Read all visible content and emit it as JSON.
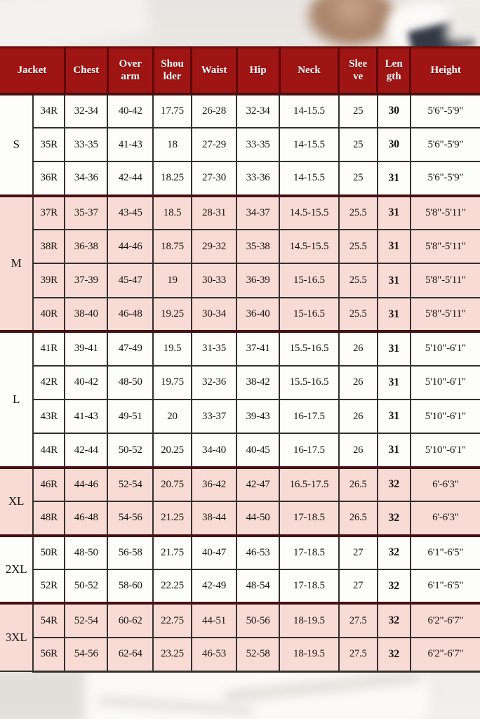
{
  "colors": {
    "header_bg": "#9e1514",
    "header_text": "#ffffff",
    "row_pink": "#f8dbd5",
    "row_white": "#fdfdfc",
    "section_border": "#471011",
    "cell_border": "#353030"
  },
  "chart_data": {
    "type": "table",
    "columns": [
      "Jacket",
      "Chest",
      "Over\narm",
      "Shou\nlder",
      "Waist",
      "Hip",
      "Neck",
      "Slee\nve",
      "Len\ngth",
      "Height"
    ],
    "sections": [
      {
        "size": "S",
        "shade": "white",
        "rows": [
          [
            "34R",
            "32-34",
            "40-42",
            "17.75",
            "26-28",
            "32-34",
            "14-15.5",
            "25",
            "30",
            "5'6\"-5'9\""
          ],
          [
            "35R",
            "33-35",
            "41-43",
            "18",
            "27-29",
            "33-35",
            "14-15.5",
            "25",
            "30",
            "5'6\"-5'9\""
          ],
          [
            "36R",
            "34-36",
            "42-44",
            "18.25",
            "27-30",
            "33-36",
            "14-15.5",
            "25",
            "31",
            "5'6\"-5'9\""
          ]
        ]
      },
      {
        "size": "M",
        "shade": "pink",
        "rows": [
          [
            "37R",
            "35-37",
            "43-45",
            "18.5",
            "28-31",
            "34-37",
            "14.5-15.5",
            "25.5",
            "31",
            "5'8\"-5'11\""
          ],
          [
            "38R",
            "36-38",
            "44-46",
            "18.75",
            "29-32",
            "35-38",
            "14.5-15.5",
            "25.5",
            "31",
            "5'8\"-5'11\""
          ],
          [
            "39R",
            "37-39",
            "45-47",
            "19",
            "30-33",
            "36-39",
            "15-16.5",
            "25.5",
            "31",
            "5'8\"-5'11\""
          ],
          [
            "40R",
            "38-40",
            "46-48",
            "19.25",
            "30-34",
            "36-40",
            "15-16.5",
            "25.5",
            "31",
            "5'8\"-5'11\""
          ]
        ]
      },
      {
        "size": "L",
        "shade": "white",
        "rows": [
          [
            "41R",
            "39-41",
            "47-49",
            "19.5",
            "31-35",
            "37-41",
            "15.5-16.5",
            "26",
            "31",
            "5'10\"-6'1\""
          ],
          [
            "42R",
            "40-42",
            "48-50",
            "19.75",
            "32-36",
            "38-42",
            "15.5-16.5",
            "26",
            "31",
            "5'10\"-6'1\""
          ],
          [
            "43R",
            "41-43",
            "49-51",
            "20",
            "33-37",
            "39-43",
            "16-17.5",
            "26",
            "31",
            "5'10\"-6'1\""
          ],
          [
            "44R",
            "42-44",
            "50-52",
            "20.25",
            "34-40",
            "40-45",
            "16-17.5",
            "26",
            "31",
            "5'10\"-6'1\""
          ]
        ]
      },
      {
        "size": "XL",
        "shade": "pink",
        "rows": [
          [
            "46R",
            "44-46",
            "52-54",
            "20.75",
            "36-42",
            "42-47",
            "16.5-17.5",
            "26.5",
            "32",
            "6'-6'3\""
          ],
          [
            "48R",
            "46-48",
            "54-56",
            "21.25",
            "38-44",
            "44-50",
            "17-18.5",
            "26.5",
            "32",
            "6'-6'3\""
          ]
        ]
      },
      {
        "size": "2XL",
        "shade": "white",
        "rows": [
          [
            "50R",
            "48-50",
            "56-58",
            "21.75",
            "40-47",
            "46-53",
            "17-18.5",
            "27",
            "32",
            "6'1\"-6'5\""
          ],
          [
            "52R",
            "50-52",
            "58-60",
            "22.25",
            "42-49",
            "48-54",
            "17-18.5",
            "27",
            "32",
            "6'1\"-6'5\""
          ]
        ]
      },
      {
        "size": "3XL",
        "shade": "pink",
        "rows": [
          [
            "54R",
            "52-54",
            "60-62",
            "22.75",
            "44-51",
            "50-56",
            "18-19.5",
            "27.5",
            "32",
            "6'2\"-6'7\""
          ],
          [
            "56R",
            "54-56",
            "62-64",
            "23.25",
            "46-53",
            "52-58",
            "18-19.5",
            "27.5",
            "32",
            "6'2\"-6'7\""
          ]
        ]
      }
    ]
  }
}
